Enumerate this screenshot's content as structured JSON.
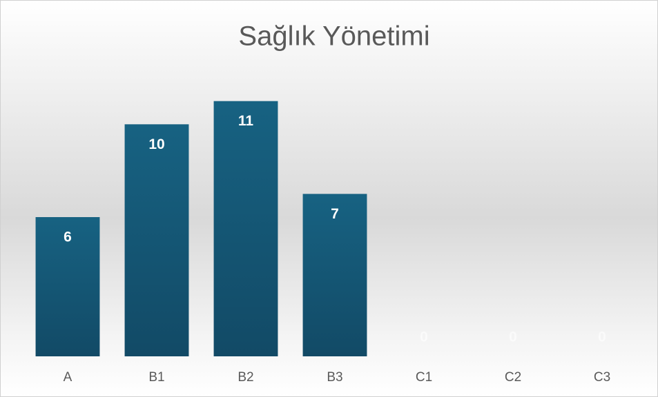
{
  "chart_data": {
    "type": "bar",
    "title": "Sağlık Yönetimi",
    "categories": [
      "A",
      "B1",
      "B2",
      "B3",
      "C1",
      "C2",
      "C3"
    ],
    "values": [
      6,
      10,
      11,
      7,
      0,
      0,
      0
    ],
    "color": "#16597a",
    "ylim": [
      0,
      12
    ]
  }
}
